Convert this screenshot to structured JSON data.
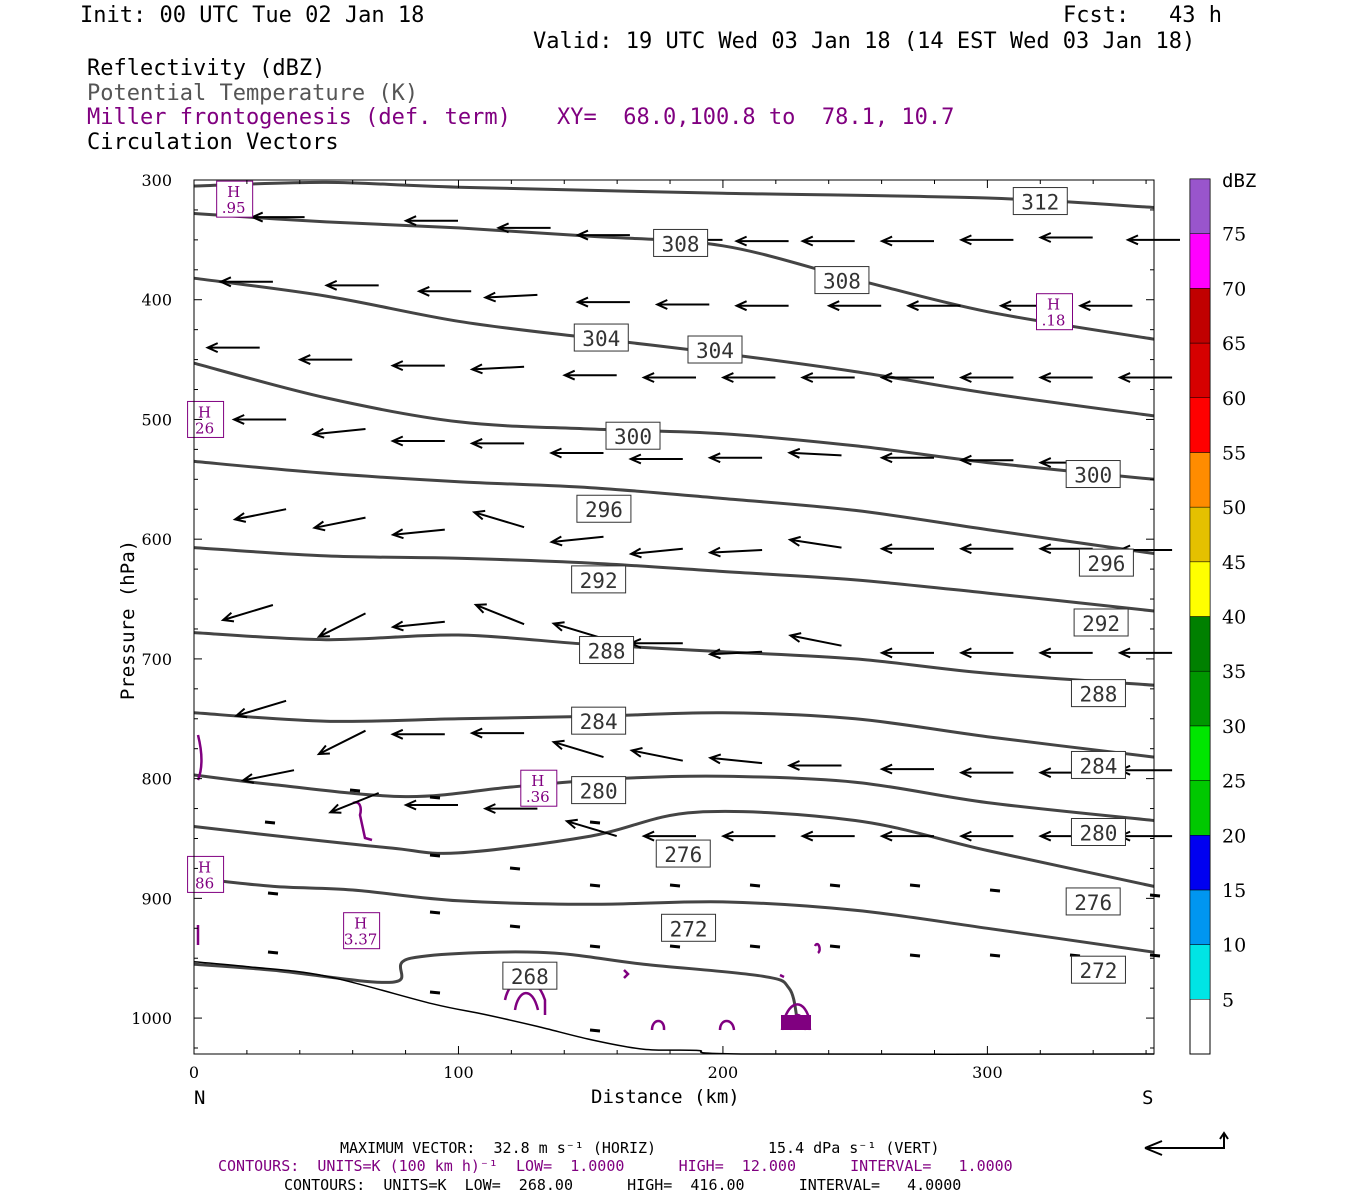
{
  "header": {
    "init": "Init: 00 UTC Tue 02 Jan 18",
    "fcst": "Fcst:   43 h",
    "valid": "Valid: 19 UTC Wed 03 Jan 18 (14 EST Wed 03 Jan 18)",
    "fields": [
      {
        "label": "Reflectivity (dBZ)",
        "color": "#000000"
      },
      {
        "label": "Potential Temperature (K)",
        "color": "#555555"
      },
      {
        "label": "Miller frontogenesis (def. term)",
        "color": "#800080"
      },
      {
        "label": "Circulation Vectors",
        "color": "#000000"
      }
    ],
    "xy": "XY=  68.0,100.8 to  78.1, 10.7"
  },
  "chart_data": {
    "type": "line",
    "title": "",
    "xlabel": "Distance (km)",
    "ylabel": "Pressure (hPa)",
    "xlim": [
      0,
      363
    ],
    "ylim": [
      1030,
      300
    ],
    "x_ticks": [
      0,
      100,
      200,
      300
    ],
    "y_ticks": [
      300,
      400,
      500,
      600,
      700,
      800,
      900,
      1000
    ],
    "x_end_labels": {
      "left": "N",
      "right": "S"
    },
    "theta_series": [
      {
        "name": "268",
        "points": [
          [
            0,
            955
          ],
          [
            30,
            960
          ],
          [
            75,
            970
          ],
          [
            82,
            950
          ],
          [
            130,
            945
          ],
          [
            170,
            955
          ],
          [
            215,
            965
          ],
          [
            225,
            975
          ],
          [
            228,
            1000
          ]
        ]
      },
      {
        "name": "272",
        "points": [
          [
            0,
            883
          ],
          [
            30,
            890
          ],
          [
            60,
            893
          ],
          [
            100,
            902
          ],
          [
            150,
            905
          ],
          [
            200,
            903
          ],
          [
            250,
            910
          ],
          [
            300,
            925
          ],
          [
            363,
            945
          ]
        ]
      },
      {
        "name": "276",
        "points": [
          [
            0,
            840
          ],
          [
            40,
            850
          ],
          [
            75,
            858
          ],
          [
            100,
            862
          ],
          [
            150,
            848
          ],
          [
            190,
            828
          ],
          [
            250,
            835
          ],
          [
            300,
            860
          ],
          [
            363,
            890
          ]
        ]
      },
      {
        "name": "280",
        "points": [
          [
            0,
            797
          ],
          [
            30,
            805
          ],
          [
            80,
            815
          ],
          [
            120,
            807
          ],
          [
            160,
            800
          ],
          [
            200,
            798
          ],
          [
            250,
            803
          ],
          [
            300,
            820
          ],
          [
            363,
            835
          ]
        ]
      },
      {
        "name": "284",
        "points": [
          [
            0,
            745
          ],
          [
            50,
            752
          ],
          [
            100,
            750
          ],
          [
            150,
            748
          ],
          [
            200,
            745
          ],
          [
            250,
            750
          ],
          [
            300,
            765
          ],
          [
            363,
            782
          ]
        ]
      },
      {
        "name": "288",
        "points": [
          [
            0,
            678
          ],
          [
            50,
            684
          ],
          [
            100,
            680
          ],
          [
            150,
            688
          ],
          [
            200,
            694
          ],
          [
            250,
            700
          ],
          [
            300,
            712
          ],
          [
            363,
            722
          ]
        ]
      },
      {
        "name": "292",
        "points": [
          [
            0,
            607
          ],
          [
            50,
            614
          ],
          [
            100,
            616
          ],
          [
            150,
            620
          ],
          [
            200,
            627
          ],
          [
            250,
            634
          ],
          [
            300,
            645
          ],
          [
            363,
            660
          ]
        ]
      },
      {
        "name": "296",
        "points": [
          [
            0,
            535
          ],
          [
            50,
            545
          ],
          [
            100,
            552
          ],
          [
            150,
            557
          ],
          [
            200,
            566
          ],
          [
            250,
            576
          ],
          [
            300,
            592
          ],
          [
            363,
            612
          ]
        ]
      },
      {
        "name": "300",
        "points": [
          [
            0,
            453
          ],
          [
            50,
            482
          ],
          [
            100,
            502
          ],
          [
            150,
            508
          ],
          [
            200,
            512
          ],
          [
            250,
            522
          ],
          [
            300,
            536
          ],
          [
            363,
            550
          ]
        ]
      },
      {
        "name": "304",
        "points": [
          [
            0,
            382
          ],
          [
            50,
            397
          ],
          [
            100,
            418
          ],
          [
            150,
            432
          ],
          [
            200,
            445
          ],
          [
            250,
            460
          ],
          [
            300,
            478
          ],
          [
            363,
            497
          ]
        ]
      },
      {
        "name": "308",
        "points": [
          [
            0,
            328
          ],
          [
            50,
            335
          ],
          [
            100,
            340
          ],
          [
            150,
            347
          ],
          [
            200,
            355
          ],
          [
            250,
            383
          ],
          [
            300,
            410
          ],
          [
            363,
            433
          ]
        ]
      },
      {
        "name": "312",
        "points": [
          [
            0,
            305
          ],
          [
            50,
            302
          ],
          [
            100,
            306
          ],
          [
            200,
            311
          ],
          [
            300,
            315
          ],
          [
            363,
            323
          ]
        ]
      }
    ],
    "theta_labels": [
      {
        "text": "312",
        "x": 320,
        "p": 318
      },
      {
        "text": "308",
        "x": 245,
        "p": 384
      },
      {
        "text": "308",
        "x": 184,
        "p": 353
      },
      {
        "text": "304",
        "x": 154,
        "p": 432
      },
      {
        "text": "304",
        "x": 197,
        "p": 442
      },
      {
        "text": "300",
        "x": 166,
        "p": 514
      },
      {
        "text": "300",
        "x": 340,
        "p": 546
      },
      {
        "text": "296",
        "x": 155,
        "p": 575
      },
      {
        "text": "296",
        "x": 345,
        "p": 620
      },
      {
        "text": "292",
        "x": 153,
        "p": 634
      },
      {
        "text": "292",
        "x": 343,
        "p": 670
      },
      {
        "text": "288",
        "x": 156,
        "p": 693
      },
      {
        "text": "288",
        "x": 342,
        "p": 729
      },
      {
        "text": "284",
        "x": 153,
        "p": 752
      },
      {
        "text": "284",
        "x": 342,
        "p": 789
      },
      {
        "text": "280",
        "x": 153,
        "p": 810
      },
      {
        "text": "280",
        "x": 342,
        "p": 845
      },
      {
        "text": "276",
        "x": 185,
        "p": 863
      },
      {
        "text": "276",
        "x": 340,
        "p": 903
      },
      {
        "text": "272",
        "x": 187,
        "p": 925
      },
      {
        "text": "272",
        "x": 342,
        "p": 960
      },
      {
        "text": "268",
        "x": 127,
        "p": 965
      }
    ],
    "terrain": [
      [
        0,
        953
      ],
      [
        20,
        957
      ],
      [
        50,
        965
      ],
      [
        90,
        988
      ],
      [
        110,
        997
      ],
      [
        130,
        1007
      ],
      [
        150,
        1018
      ],
      [
        170,
        1026
      ],
      [
        190,
        1027
      ],
      [
        210,
        1030
      ],
      [
        363,
        1030
      ]
    ],
    "vectors": [
      {
        "x": 32,
        "p": 331,
        "u": -1,
        "v": 0
      },
      {
        "x": 90,
        "p": 334,
        "u": -1,
        "v": 0
      },
      {
        "x": 125,
        "p": 340,
        "u": -1,
        "v": 0
      },
      {
        "x": 155,
        "p": 346,
        "u": -1,
        "v": 0
      },
      {
        "x": 190,
        "p": 350,
        "u": -1,
        "v": 0
      },
      {
        "x": 215,
        "p": 351,
        "u": -1,
        "v": 0
      },
      {
        "x": 240,
        "p": 351,
        "u": -1,
        "v": 0
      },
      {
        "x": 270,
        "p": 351,
        "u": -1,
        "v": 0
      },
      {
        "x": 300,
        "p": 350,
        "u": -1,
        "v": 0
      },
      {
        "x": 330,
        "p": 348,
        "u": -1,
        "v": 0
      },
      {
        "x": 363,
        "p": 350,
        "u": -1,
        "v": 0
      },
      {
        "x": 20,
        "p": 385,
        "u": -1,
        "v": 0
      },
      {
        "x": 60,
        "p": 388,
        "u": -1,
        "v": 0
      },
      {
        "x": 95,
        "p": 393,
        "u": -1,
        "v": 0
      },
      {
        "x": 120,
        "p": 396,
        "u": -1,
        "v": 0.05
      },
      {
        "x": 155,
        "p": 402,
        "u": -1,
        "v": 0
      },
      {
        "x": 185,
        "p": 404,
        "u": -1,
        "v": 0
      },
      {
        "x": 215,
        "p": 405,
        "u": -1,
        "v": 0
      },
      {
        "x": 250,
        "p": 405,
        "u": -1,
        "v": 0
      },
      {
        "x": 280,
        "p": 405,
        "u": -1,
        "v": 0
      },
      {
        "x": 315,
        "p": 405,
        "u": -1,
        "v": 0
      },
      {
        "x": 345,
        "p": 405,
        "u": -1,
        "v": 0
      },
      {
        "x": 15,
        "p": 440,
        "u": -1,
        "v": 0
      },
      {
        "x": 50,
        "p": 450,
        "u": -1,
        "v": 0
      },
      {
        "x": 85,
        "p": 455,
        "u": -1,
        "v": 0
      },
      {
        "x": 115,
        "p": 456,
        "u": -1,
        "v": 0.05
      },
      {
        "x": 150,
        "p": 463,
        "u": -1,
        "v": 0
      },
      {
        "x": 180,
        "p": 465,
        "u": -1,
        "v": 0
      },
      {
        "x": 210,
        "p": 465,
        "u": -1,
        "v": 0
      },
      {
        "x": 240,
        "p": 465,
        "u": -1,
        "v": 0
      },
      {
        "x": 270,
        "p": 465,
        "u": -1,
        "v": 0
      },
      {
        "x": 300,
        "p": 465,
        "u": -1,
        "v": 0
      },
      {
        "x": 330,
        "p": 465,
        "u": -1,
        "v": 0
      },
      {
        "x": 360,
        "p": 465,
        "u": -1,
        "v": 0
      },
      {
        "x": 25,
        "p": 500,
        "u": -1,
        "v": 0
      },
      {
        "x": 55,
        "p": 508,
        "u": -1,
        "v": 0.1
      },
      {
        "x": 85,
        "p": 518,
        "u": -1,
        "v": 0
      },
      {
        "x": 115,
        "p": 520,
        "u": -1,
        "v": 0
      },
      {
        "x": 145,
        "p": 528,
        "u": -1,
        "v": 0
      },
      {
        "x": 175,
        "p": 533,
        "u": -1,
        "v": 0
      },
      {
        "x": 205,
        "p": 532,
        "u": -1,
        "v": 0
      },
      {
        "x": 235,
        "p": 530,
        "u": -1,
        "v": -0.05
      },
      {
        "x": 270,
        "p": 532,
        "u": -1,
        "v": 0
      },
      {
        "x": 300,
        "p": 534,
        "u": -1,
        "v": 0
      },
      {
        "x": 330,
        "p": 536,
        "u": -1,
        "v": 0
      },
      {
        "x": 25,
        "p": 575,
        "u": -1,
        "v": 0.2
      },
      {
        "x": 55,
        "p": 582,
        "u": -1,
        "v": 0.2
      },
      {
        "x": 85,
        "p": 592,
        "u": -1,
        "v": 0.1
      },
      {
        "x": 115,
        "p": 590,
        "u": -1,
        "v": -0.3
      },
      {
        "x": 145,
        "p": 598,
        "u": -1,
        "v": 0.1
      },
      {
        "x": 175,
        "p": 608,
        "u": -1,
        "v": 0.1
      },
      {
        "x": 205,
        "p": 609,
        "u": -1,
        "v": 0.05
      },
      {
        "x": 235,
        "p": 607,
        "u": -1,
        "v": -0.15
      },
      {
        "x": 270,
        "p": 608,
        "u": -1,
        "v": 0
      },
      {
        "x": 300,
        "p": 608,
        "u": -1,
        "v": 0
      },
      {
        "x": 330,
        "p": 608,
        "u": -1,
        "v": 0
      },
      {
        "x": 360,
        "p": 609,
        "u": -1,
        "v": 0
      },
      {
        "x": 20,
        "p": 655,
        "u": -1,
        "v": 0.3
      },
      {
        "x": 55,
        "p": 662,
        "u": -1,
        "v": 0.5
      },
      {
        "x": 85,
        "p": 669,
        "u": -1,
        "v": 0.1
      },
      {
        "x": 115,
        "p": 671,
        "u": -1,
        "v": -0.4
      },
      {
        "x": 145,
        "p": 683,
        "u": -1,
        "v": -0.3
      },
      {
        "x": 175,
        "p": 687,
        "u": -1,
        "v": 0
      },
      {
        "x": 205,
        "p": 694,
        "u": -1,
        "v": 0.05
      },
      {
        "x": 235,
        "p": 689,
        "u": -1,
        "v": -0.2
      },
      {
        "x": 270,
        "p": 695,
        "u": -1,
        "v": 0
      },
      {
        "x": 300,
        "p": 695,
        "u": -1,
        "v": 0
      },
      {
        "x": 330,
        "p": 695,
        "u": -1,
        "v": 0
      },
      {
        "x": 360,
        "p": 695,
        "u": -1,
        "v": 0
      },
      {
        "x": 25,
        "p": 735,
        "u": -1,
        "v": 0.3
      },
      {
        "x": 55,
        "p": 760,
        "u": -1,
        "v": 0.5
      },
      {
        "x": 85,
        "p": 763,
        "u": -1,
        "v": 0
      },
      {
        "x": 115,
        "p": 762,
        "u": -1,
        "v": 0
      },
      {
        "x": 145,
        "p": 782,
        "u": -1,
        "v": -0.3
      },
      {
        "x": 175,
        "p": 785,
        "u": -1,
        "v": -0.2
      },
      {
        "x": 205,
        "p": 787,
        "u": -1,
        "v": -0.1
      },
      {
        "x": 235,
        "p": 789,
        "u": -1,
        "v": 0
      },
      {
        "x": 270,
        "p": 792,
        "u": -1,
        "v": 0
      },
      {
        "x": 300,
        "p": 795,
        "u": -1,
        "v": 0
      },
      {
        "x": 330,
        "p": 795,
        "u": -1,
        "v": 0
      },
      {
        "x": 360,
        "p": 793,
        "u": -1,
        "v": 0
      },
      {
        "x": 28,
        "p": 793,
        "u": -1,
        "v": 0.2
      },
      {
        "x": 60,
        "p": 812,
        "u": -1,
        "v": 0.4
      },
      {
        "x": 90,
        "p": 822,
        "u": -1,
        "v": 0
      },
      {
        "x": 120,
        "p": 825,
        "u": -1,
        "v": 0
      },
      {
        "x": 150,
        "p": 848,
        "u": -1,
        "v": -0.3
      },
      {
        "x": 180,
        "p": 848,
        "u": -1,
        "v": 0
      },
      {
        "x": 210,
        "p": 848,
        "u": -1,
        "v": 0
      },
      {
        "x": 240,
        "p": 848,
        "u": -1,
        "v": 0
      },
      {
        "x": 270,
        "p": 848,
        "u": -1,
        "v": 0
      },
      {
        "x": 300,
        "p": 848,
        "u": -1,
        "v": 0
      },
      {
        "x": 330,
        "p": 848,
        "u": -1,
        "v": 0
      },
      {
        "x": 360,
        "p": 848,
        "u": -1,
        "v": 0
      }
    ],
    "frontogenesis_labels": [
      {
        "text": ".95",
        "x": 15,
        "p": 316
      },
      {
        "text": ".18",
        "x": 325,
        "p": 410
      },
      {
        "text": "26",
        "x": 4,
        "p": 500
      },
      {
        "text": ".36",
        "x": 130,
        "p": 808
      },
      {
        "text": "86",
        "x": 4,
        "p": 880
      },
      {
        "text": "3.37",
        "x": 63,
        "p": 927
      }
    ],
    "colorbar": {
      "unit": "dBZ",
      "levels": [
        "5",
        "10",
        "15",
        "20",
        "25",
        "30",
        "35",
        "40",
        "45",
        "50",
        "55",
        "60",
        "65",
        "70",
        "75"
      ],
      "colors": [
        "#00e5e5",
        "#0096f0",
        "#0000f0",
        "#00c800",
        "#00e600",
        "#009600",
        "#008000",
        "#ffff00",
        "#e5c000",
        "#ff8c00",
        "#ff0000",
        "#d60000",
        "#c00000",
        "#ff00ff",
        "#9955cc"
      ]
    }
  },
  "footer": {
    "line1_left": "MAXIMUM VECTOR:  32.8 m s⁻¹ (HORIZ)",
    "line1_right": "15.4 dPa s⁻¹ (VERT)",
    "line2": "CONTOURS:  UNITS=K (100 km h)⁻¹  LOW=  1.0000      HIGH=  12.000      INTERVAL=   1.0000",
    "line3": "CONTOURS:  UNITS=K  LOW=  268.00      HIGH=  416.00      INTERVAL=   4.0000"
  }
}
